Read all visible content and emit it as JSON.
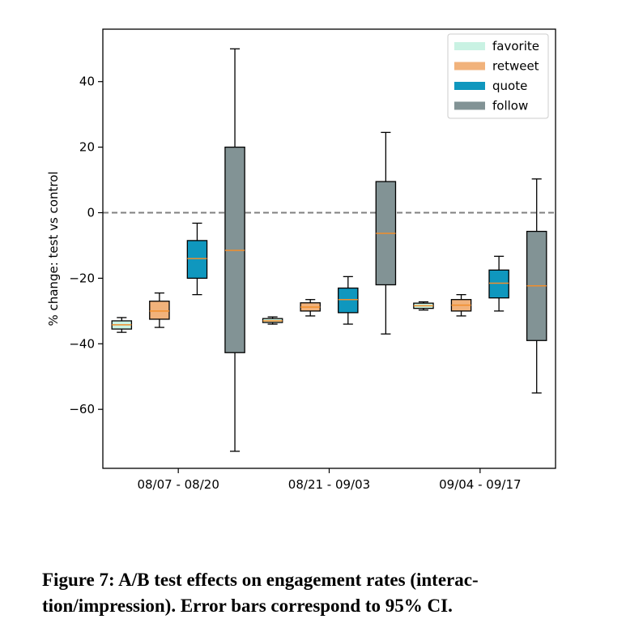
{
  "caption": "Figure 7: A/B test effects on engagement rates (interaction/impression). Error bars correspond to 95% CI.",
  "caption_parts": [
    "Figure 7: A/B test effects on engagement rates (interac-",
    "tion/impression). Error bars correspond to 95% CI."
  ],
  "chart_data": {
    "type": "box",
    "title": "",
    "xlabel": "",
    "ylabel": "% change: test vs control",
    "ylim": [
      -78,
      56
    ],
    "yticks": [
      40,
      20,
      0,
      -20,
      -40,
      -60
    ],
    "ytick_labels": [
      "40",
      "20",
      "0",
      "−20",
      "−40",
      "−60"
    ],
    "reference_line": {
      "y": 0,
      "style": "dashed",
      "color": "#808080"
    },
    "grid": false,
    "legend": {
      "placement": "top-right"
    },
    "categories": [
      "08/07 - 08/20",
      "08/21 - 09/03",
      "09/04 - 09/17"
    ],
    "median_color": "#f28e2b",
    "series": [
      {
        "name": "favorite",
        "color": "#c9f2e3",
        "boxes": [
          {
            "whislo": -36.5,
            "q1": -35.5,
            "med": -34.2,
            "q3": -33.0,
            "whishi": -32.0
          },
          {
            "whislo": -34.0,
            "q1": -33.5,
            "med": -33.0,
            "q3": -32.3,
            "whishi": -31.8
          },
          {
            "whislo": -29.7,
            "q1": -29.2,
            "med": -28.4,
            "q3": -27.6,
            "whishi": -27.2
          }
        ]
      },
      {
        "name": "retweet",
        "color": "#f1b27b",
        "boxes": [
          {
            "whislo": -35.0,
            "q1": -32.5,
            "med": -30.0,
            "q3": -27.0,
            "whishi": -24.5
          },
          {
            "whislo": -31.5,
            "q1": -30.0,
            "med": -28.8,
            "q3": -27.5,
            "whishi": -26.5
          },
          {
            "whislo": -31.5,
            "q1": -30.0,
            "med": -28.2,
            "q3": -26.5,
            "whishi": -25.0
          }
        ]
      },
      {
        "name": "quote",
        "color": "#0f97be",
        "boxes": [
          {
            "whislo": -25.0,
            "q1": -20.0,
            "med": -14.0,
            "q3": -8.5,
            "whishi": -3.2
          },
          {
            "whislo": -34.0,
            "q1": -30.5,
            "med": -26.5,
            "q3": -23.0,
            "whishi": -19.5
          },
          {
            "whislo": -30.0,
            "q1": -26.0,
            "med": -21.5,
            "q3": -17.5,
            "whishi": -13.3
          }
        ]
      },
      {
        "name": "follow",
        "color": "#829395",
        "boxes": [
          {
            "whislo": -72.8,
            "q1": -42.7,
            "med": -11.5,
            "q3": 20.0,
            "whishi": 50.0
          },
          {
            "whislo": -37.0,
            "q1": -22.0,
            "med": -6.3,
            "q3": 9.5,
            "whishi": 24.5
          },
          {
            "whislo": -55.0,
            "q1": -39.0,
            "med": -22.3,
            "q3": -5.7,
            "whishi": 10.3
          }
        ]
      }
    ]
  }
}
